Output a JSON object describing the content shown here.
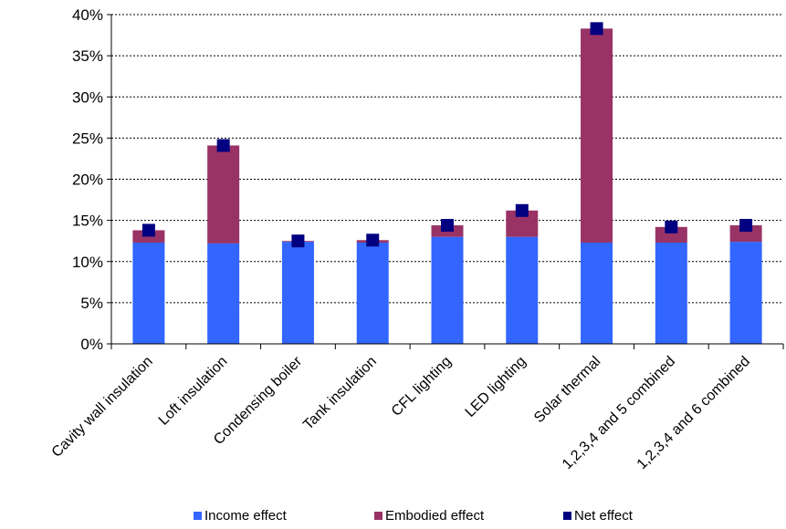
{
  "chart_data": {
    "type": "bar",
    "stacked": true,
    "categories": [
      "Cavity wall insulation",
      "Loft insulation",
      "Condensing boiler",
      "Tank insulation",
      "CFL lighting",
      "LED lighting",
      "Solar thermal",
      "1,2,3,4 and 5 combined",
      "1,2,3,4 and 6 combined"
    ],
    "series": [
      {
        "name": "Income effect",
        "kind": "bar",
        "color": "#3366ff",
        "values": [
          12.3,
          12.2,
          12.4,
          12.3,
          13.0,
          13.0,
          12.3,
          12.3,
          12.4
        ]
      },
      {
        "name": "Embodied effect",
        "kind": "bar",
        "color": "#993366",
        "values": [
          1.5,
          11.9,
          0.1,
          0.3,
          1.4,
          3.2,
          26.0,
          1.9,
          2.0
        ]
      },
      {
        "name": "Net effect",
        "kind": "marker",
        "color": "#000080",
        "values": [
          13.8,
          24.1,
          12.5,
          12.6,
          14.4,
          16.2,
          38.3,
          14.2,
          14.4
        ]
      }
    ],
    "ylim": [
      0,
      40
    ],
    "yticks": [
      "0%",
      "5%",
      "10%",
      "15%",
      "20%",
      "25%",
      "30%",
      "35%",
      "40%"
    ],
    "ytick_values": [
      0,
      5,
      10,
      15,
      20,
      25,
      30,
      35,
      40
    ],
    "grid": "horizontal dashed",
    "legend_position": "bottom"
  }
}
